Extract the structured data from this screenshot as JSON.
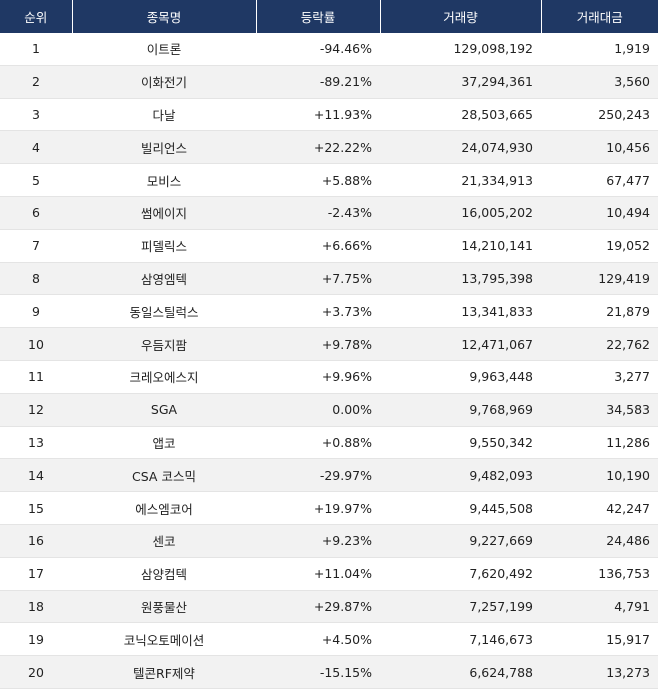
{
  "table": {
    "header": [
      "순위",
      "종목명",
      "등락률",
      "거래량",
      "거래대금"
    ],
    "rows": [
      [
        "1",
        "이트론",
        "-94.46%",
        "129,098,192",
        "1,919"
      ],
      [
        "2",
        "이화전기",
        "-89.21%",
        "37,294,361",
        "3,560"
      ],
      [
        "3",
        "다날",
        "+11.93%",
        "28,503,665",
        "250,243"
      ],
      [
        "4",
        "빌리언스",
        "+22.22%",
        "24,074,930",
        "10,456"
      ],
      [
        "5",
        "모비스",
        "+5.88%",
        "21,334,913",
        "67,477"
      ],
      [
        "6",
        "썸에이지",
        "-2.43%",
        "16,005,202",
        "10,494"
      ],
      [
        "7",
        "피델릭스",
        "+6.66%",
        "14,210,141",
        "19,052"
      ],
      [
        "8",
        "삼영엠텍",
        "+7.75%",
        "13,795,398",
        "129,419"
      ],
      [
        "9",
        "동일스틸럭스",
        "+3.73%",
        "13,341,833",
        "21,879"
      ],
      [
        "10",
        "우듬지팜",
        "+9.78%",
        "12,471,067",
        "22,762"
      ],
      [
        "11",
        "크레오에스지",
        "+9.96%",
        "9,963,448",
        "3,277"
      ],
      [
        "12",
        "SGA",
        "0.00%",
        "9,768,969",
        "34,583"
      ],
      [
        "13",
        "앱코",
        "+0.88%",
        "9,550,342",
        "11,286"
      ],
      [
        "14",
        "CSA 코스믹",
        "-29.97%",
        "9,482,093",
        "10,190"
      ],
      [
        "15",
        "에스엠코어",
        "+19.97%",
        "9,445,508",
        "42,247"
      ],
      [
        "16",
        "센코",
        "+9.23%",
        "9,227,669",
        "24,486"
      ],
      [
        "17",
        "삼양컴텍",
        "+11.04%",
        "7,620,492",
        "136,753"
      ],
      [
        "18",
        "원풍물산",
        "+29.87%",
        "7,257,199",
        "4,791"
      ],
      [
        "19",
        "코닉오토메이션",
        "+4.50%",
        "7,146,673",
        "15,917"
      ],
      [
        "20",
        "텔콘RF제약",
        "-15.15%",
        "6,624,788",
        "13,273"
      ]
    ]
  }
}
